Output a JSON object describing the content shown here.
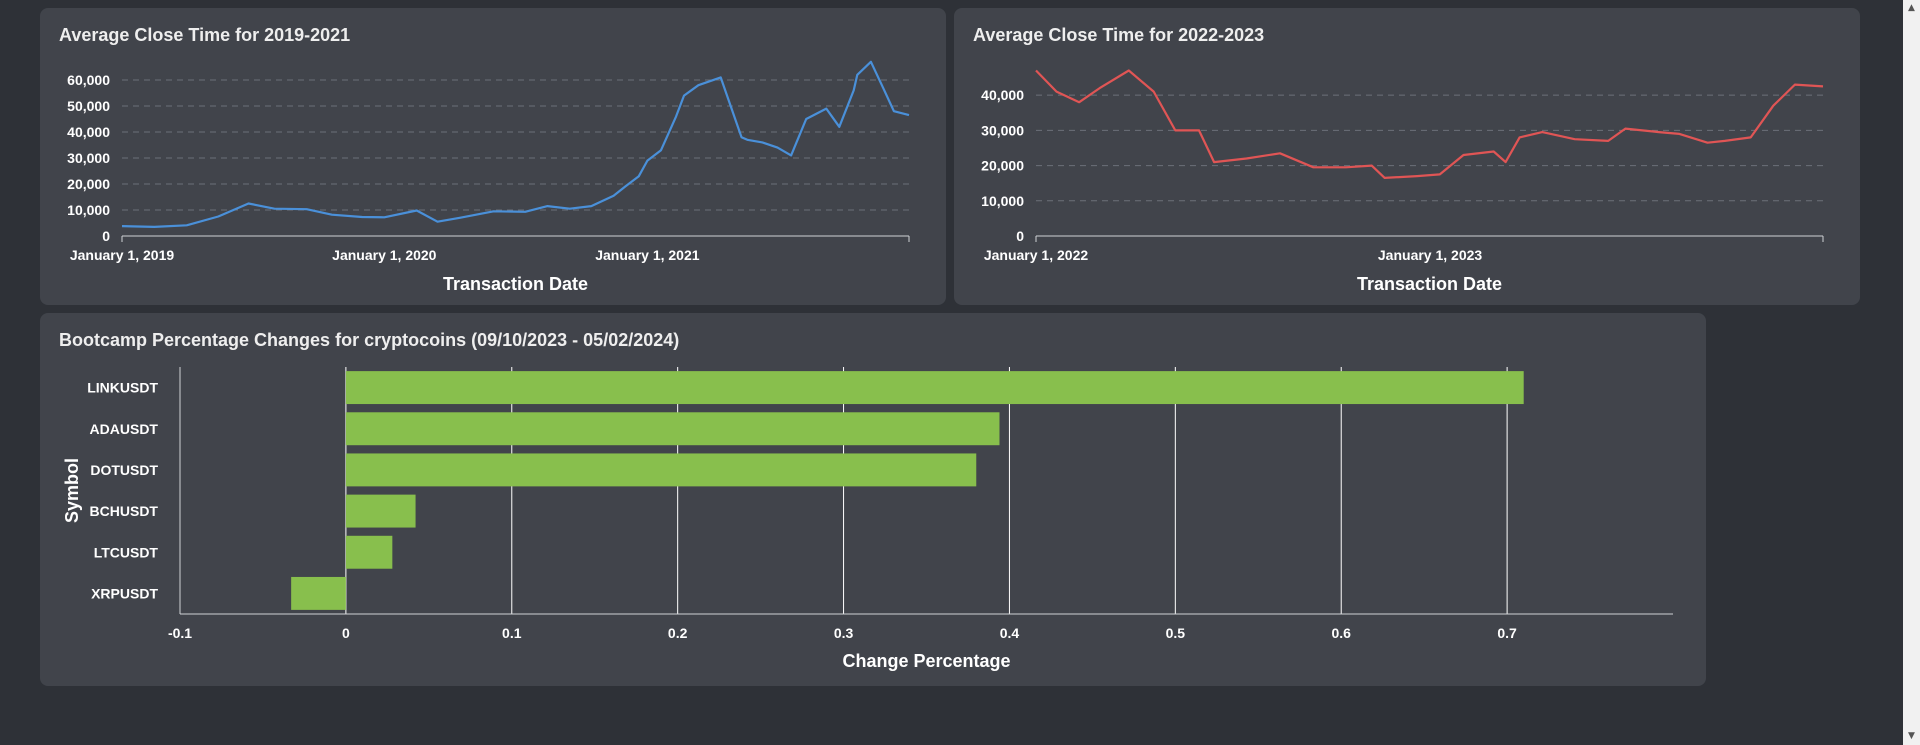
{
  "charts": {
    "c1": {
      "chart_data": {
        "type": "line",
        "title": "Average Close Time for 2019-2021",
        "xlabel": "Transaction Date",
        "ylabel": "",
        "color": "#4a90d9",
        "ylim": [
          0,
          65000
        ],
        "xlim": [
          "2019-01-01",
          "2021-12-31"
        ],
        "y_ticks": [
          0,
          10000,
          20000,
          30000,
          40000,
          50000,
          60000
        ],
        "y_tick_labels": [
          "0",
          "10,000",
          "20,000",
          "30,000",
          "40,000",
          "50,000",
          "60,000"
        ],
        "x_ticks": [
          "2019-01-01",
          "2020-01-01",
          "2021-01-01"
        ],
        "x_tick_labels": [
          "January 1, 2019",
          "January 1, 2020",
          "January 1, 2021"
        ],
        "grid": "horizontal-dashed",
        "x": [
          "2019-01-01",
          "2019-02-15",
          "2019-04-01",
          "2019-05-15",
          "2019-06-26",
          "2019-08-01",
          "2019-09-15",
          "2019-10-20",
          "2019-12-01",
          "2020-01-01",
          "2020-02-15",
          "2020-03-15",
          "2020-04-15",
          "2020-06-01",
          "2020-07-15",
          "2020-08-15",
          "2020-09-15",
          "2020-10-15",
          "2020-11-15",
          "2020-12-01",
          "2020-12-20",
          "2021-01-01",
          "2021-01-20",
          "2021-02-10",
          "2021-02-21",
          "2021-03-13",
          "2021-04-13",
          "2021-05-12",
          "2021-05-20",
          "2021-06-10",
          "2021-07-01",
          "2021-07-20",
          "2021-08-10",
          "2021-09-07",
          "2021-09-25",
          "2021-10-15",
          "2021-10-20",
          "2021-11-08",
          "2021-11-25",
          "2021-12-10",
          "2021-12-31"
        ],
        "y": [
          3800,
          3500,
          4100,
          7500,
          12500,
          10500,
          10300,
          8200,
          7300,
          7200,
          9800,
          5500,
          7000,
          9500,
          9300,
          11500,
          10500,
          11500,
          15500,
          19000,
          23000,
          29000,
          33000,
          46000,
          54000,
          58000,
          61000,
          38000,
          37000,
          36000,
          34000,
          31000,
          45000,
          49000,
          42000,
          56000,
          62000,
          67000,
          57000,
          48000,
          46500
        ]
      }
    },
    "c2": {
      "chart_data": {
        "type": "line",
        "title": "Average Close Time for 2022-2023",
        "xlabel": "Transaction Date",
        "ylabel": "",
        "color": "#e05555",
        "ylim": [
          0,
          48000
        ],
        "xlim": [
          "2022-01-01",
          "2023-12-31"
        ],
        "y_ticks": [
          0,
          10000,
          20000,
          30000,
          40000
        ],
        "y_tick_labels": [
          "0",
          "10,000",
          "20,000",
          "30,000",
          "40,000"
        ],
        "x_ticks": [
          "2022-01-01",
          "2023-01-01"
        ],
        "x_tick_labels": [
          "January 1, 2022",
          "January 1, 2023"
        ],
        "grid": "horizontal-dashed",
        "x": [
          "2022-01-01",
          "2022-01-20",
          "2022-02-10",
          "2022-03-01",
          "2022-03-28",
          "2022-04-20",
          "2022-05-10",
          "2022-06-01",
          "2022-06-15",
          "2022-07-15",
          "2022-08-15",
          "2022-09-15",
          "2022-10-15",
          "2022-11-08",
          "2022-11-20",
          "2022-12-20",
          "2023-01-10",
          "2023-02-01",
          "2023-03-01",
          "2023-03-12",
          "2023-03-25",
          "2023-04-15",
          "2023-05-15",
          "2023-06-15",
          "2023-07-01",
          "2023-08-01",
          "2023-08-20",
          "2023-09-15",
          "2023-10-01",
          "2023-10-25",
          "2023-11-15",
          "2023-12-05",
          "2023-12-31"
        ],
        "y": [
          47000,
          41000,
          38000,
          42000,
          47000,
          41000,
          30000,
          30000,
          21000,
          22000,
          23500,
          19500,
          19500,
          20000,
          16500,
          17000,
          17500,
          23000,
          24000,
          21000,
          28000,
          29500,
          27500,
          27000,
          30500,
          29500,
          29000,
          26500,
          27000,
          28000,
          37000,
          43000,
          42500
        ]
      }
    },
    "c3": {
      "chart_data": {
        "type": "bar",
        "orientation": "horizontal",
        "title": "Bootcamp Percentage Changes for cryptocoins (09/10/2023 - 05/02/2024)",
        "xlabel": "Change Percentage",
        "ylabel": "Symbol",
        "color": "#88bf4d",
        "xlim": [
          -0.1,
          0.8
        ],
        "x_ticks": [
          -0.1,
          0,
          0.1,
          0.2,
          0.3,
          0.4,
          0.5,
          0.6,
          0.7
        ],
        "x_tick_labels": [
          "-0.1",
          "0",
          "0.1",
          "0.2",
          "0.3",
          "0.4",
          "0.5",
          "0.6",
          "0.7"
        ],
        "grid": "vertical",
        "categories": [
          "LINKUSDT",
          "ADAUSDT",
          "DOTUSDT",
          "BCHUSDT",
          "LTCUSDT",
          "XRPUSDT"
        ],
        "values": [
          0.71,
          0.394,
          0.38,
          0.042,
          0.028,
          -0.033
        ]
      }
    }
  }
}
